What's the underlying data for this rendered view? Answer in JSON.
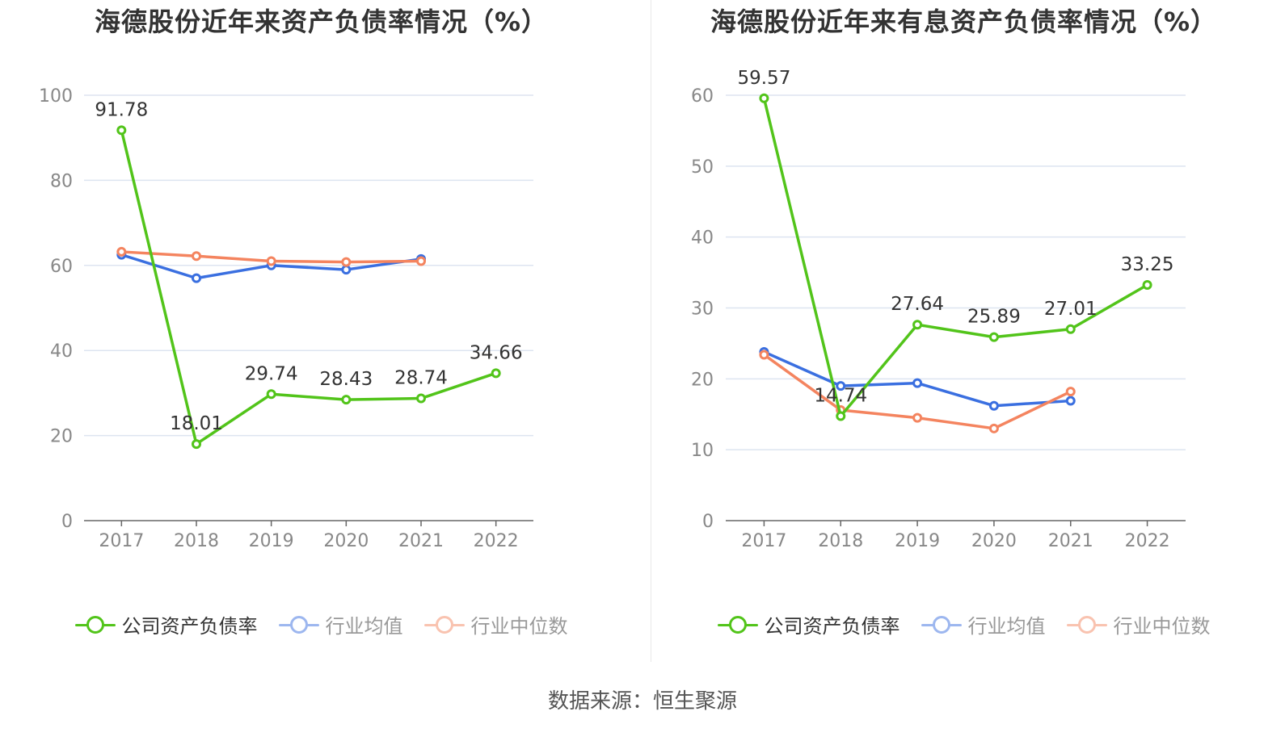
{
  "colors": {
    "company": "#52c41a",
    "avg": "#3a6fe0",
    "median": "#f4845f",
    "grid": "#dde4f0",
    "axis": "#666666",
    "tick": "#888888"
  },
  "legend": {
    "company": "公司资产负债率",
    "avg": "行业均值",
    "median": "行业中位数"
  },
  "source": "数据来源：恒生聚源",
  "chart_data": [
    {
      "type": "line",
      "title": "海德股份近年来资产负债率情况（%）",
      "categories": [
        "2017",
        "2018",
        "2019",
        "2020",
        "2021",
        "2022"
      ],
      "ylim": [
        0,
        100
      ],
      "yticks": [
        0,
        20,
        40,
        60,
        80,
        100
      ],
      "grid": true,
      "legend_position": "bottom",
      "series": [
        {
          "name": "公司资产负债率",
          "values": [
            91.78,
            18.01,
            29.74,
            28.43,
            28.74,
            34.66
          ],
          "labels": [
            "91.78",
            "18.01",
            "29.74",
            "28.43",
            "28.74",
            "34.66"
          ]
        },
        {
          "name": "行业均值",
          "values": [
            62.5,
            57.0,
            60.0,
            59.0,
            61.5,
            null
          ]
        },
        {
          "name": "行业中位数",
          "values": [
            63.2,
            62.2,
            61.0,
            60.8,
            61.0,
            null
          ]
        }
      ]
    },
    {
      "type": "line",
      "title": "海德股份近年来有息资产负债率情况（%）",
      "categories": [
        "2017",
        "2018",
        "2019",
        "2020",
        "2021",
        "2022"
      ],
      "ylim": [
        0,
        60
      ],
      "yticks": [
        0,
        10,
        20,
        30,
        40,
        50,
        60
      ],
      "grid": true,
      "legend_position": "bottom",
      "series": [
        {
          "name": "公司资产负债率",
          "values": [
            59.57,
            14.74,
            27.64,
            25.89,
            27.01,
            33.25
          ],
          "labels": [
            "59.57",
            "14.74",
            "27.64",
            "25.89",
            "27.01",
            "33.25"
          ]
        },
        {
          "name": "行业均值",
          "values": [
            23.8,
            19.0,
            19.4,
            16.2,
            16.9,
            null
          ]
        },
        {
          "name": "行业中位数",
          "values": [
            23.4,
            15.6,
            14.5,
            13.0,
            18.2,
            null
          ]
        }
      ]
    }
  ]
}
